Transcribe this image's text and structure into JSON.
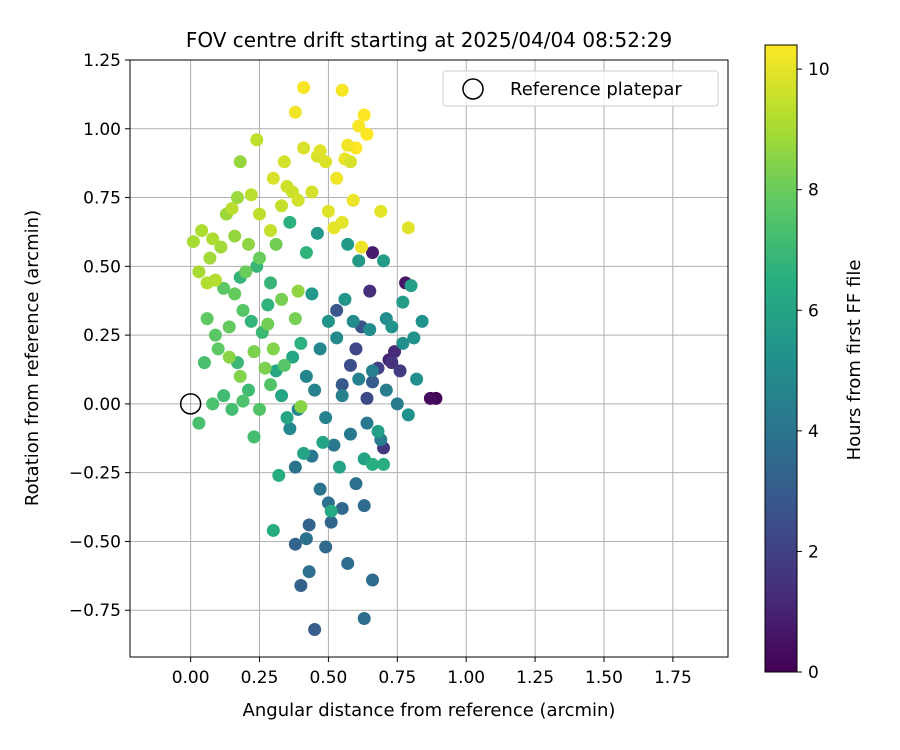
{
  "chart_data": {
    "type": "scatter",
    "title": "FOV centre drift starting at 2025/04/04 08:52:29",
    "xlabel": "Angular distance from reference (arcmin)",
    "ylabel": "Rotation from reference (arcmin)",
    "xlim": [
      -0.22,
      1.95
    ],
    "ylim": [
      -0.92,
      1.25
    ],
    "xticks": [
      0.0,
      0.25,
      0.5,
      0.75,
      1.0,
      1.25,
      1.5,
      1.75
    ],
    "yticks": [
      -0.75,
      -0.5,
      -0.25,
      0.0,
      0.25,
      0.5,
      0.75,
      1.0,
      1.25
    ],
    "xtick_labels": [
      "0.00",
      "0.25",
      "0.50",
      "0.75",
      "1.00",
      "1.25",
      "1.50",
      "1.75"
    ],
    "ytick_labels": [
      "−0.75",
      "−0.50",
      "−0.25",
      "0.00",
      "0.25",
      "0.50",
      "0.75",
      "1.00",
      "1.25"
    ],
    "grid": true,
    "legend": {
      "position": "top-right",
      "entries": [
        {
          "label": "Reference platepar",
          "marker": "open-circle"
        }
      ]
    },
    "reference_point": {
      "x": 0.0,
      "y": 0.0
    },
    "colorbar": {
      "label": "Hours from first FF file",
      "colormap": "viridis",
      "range": [
        0,
        10.4
      ],
      "ticks": [
        0,
        2,
        4,
        6,
        8,
        10
      ],
      "tick_labels": [
        "0",
        "2",
        "4",
        "6",
        "8",
        "10"
      ]
    },
    "series": [
      {
        "value_name": "hours",
        "points": [
          [
            0.89,
            0.02,
            0.1
          ],
          [
            0.87,
            0.02,
            0.3
          ],
          [
            0.78,
            0.44,
            0.6
          ],
          [
            0.66,
            0.55,
            0.8
          ],
          [
            0.72,
            0.16,
            1.0
          ],
          [
            0.74,
            0.19,
            1.2
          ],
          [
            0.65,
            0.41,
            1.4
          ],
          [
            0.73,
            0.15,
            1.5
          ],
          [
            0.7,
            -0.16,
            1.7
          ],
          [
            0.76,
            0.12,
            1.8
          ],
          [
            0.68,
            0.13,
            2.0
          ],
          [
            0.6,
            0.2,
            2.2
          ],
          [
            0.64,
            0.02,
            2.3
          ],
          [
            0.58,
            0.14,
            2.5
          ],
          [
            0.62,
            0.28,
            2.6
          ],
          [
            0.53,
            0.34,
            2.8
          ],
          [
            0.55,
            0.07,
            2.9
          ],
          [
            0.66,
            0.08,
            3.0
          ],
          [
            0.45,
            -0.82,
            3.1
          ],
          [
            0.4,
            -0.66,
            3.2
          ],
          [
            0.38,
            -0.51,
            3.3
          ],
          [
            0.43,
            -0.44,
            3.3
          ],
          [
            0.51,
            -0.43,
            3.4
          ],
          [
            0.55,
            -0.38,
            3.5
          ],
          [
            0.49,
            -0.52,
            3.5
          ],
          [
            0.63,
            -0.37,
            3.6
          ],
          [
            0.57,
            -0.58,
            3.6
          ],
          [
            0.66,
            -0.64,
            3.7
          ],
          [
            0.63,
            -0.78,
            3.7
          ],
          [
            0.43,
            -0.61,
            3.8
          ],
          [
            0.42,
            -0.49,
            3.8
          ],
          [
            0.5,
            -0.36,
            3.9
          ],
          [
            0.6,
            -0.29,
            3.9
          ],
          [
            0.47,
            -0.31,
            4.0
          ],
          [
            0.38,
            -0.23,
            4.0
          ],
          [
            0.44,
            -0.19,
            4.1
          ],
          [
            0.52,
            -0.15,
            4.1
          ],
          [
            0.58,
            -0.11,
            4.2
          ],
          [
            0.64,
            -0.07,
            4.2
          ],
          [
            0.69,
            -0.13,
            4.3
          ],
          [
            0.75,
            0.0,
            4.3
          ],
          [
            0.71,
            0.05,
            4.4
          ],
          [
            0.66,
            0.12,
            4.4
          ],
          [
            0.61,
            0.09,
            4.5
          ],
          [
            0.55,
            0.03,
            4.5
          ],
          [
            0.49,
            -0.05,
            4.6
          ],
          [
            0.45,
            0.05,
            4.6
          ],
          [
            0.42,
            0.1,
            4.7
          ],
          [
            0.39,
            -0.02,
            4.7
          ],
          [
            0.36,
            -0.09,
            4.8
          ],
          [
            0.47,
            0.2,
            4.8
          ],
          [
            0.53,
            0.24,
            4.9
          ],
          [
            0.59,
            0.3,
            4.9
          ],
          [
            0.65,
            0.27,
            5.0
          ],
          [
            0.71,
            0.31,
            5.0
          ],
          [
            0.77,
            0.22,
            5.1
          ],
          [
            0.82,
            0.09,
            5.1
          ],
          [
            0.79,
            -0.04,
            5.2
          ],
          [
            0.84,
            0.3,
            5.2
          ],
          [
            0.81,
            0.24,
            5.3
          ],
          [
            0.73,
            0.28,
            5.3
          ],
          [
            0.56,
            0.38,
            5.4
          ],
          [
            0.5,
            0.3,
            5.4
          ],
          [
            0.44,
            0.4,
            5.5
          ],
          [
            0.46,
            0.62,
            5.5
          ],
          [
            0.57,
            0.58,
            5.6
          ],
          [
            0.61,
            0.52,
            5.6
          ],
          [
            0.7,
            0.52,
            5.7
          ],
          [
            0.77,
            0.37,
            5.7
          ],
          [
            0.8,
            0.43,
            5.8
          ],
          [
            0.68,
            -0.1,
            5.8
          ],
          [
            0.63,
            -0.2,
            5.9
          ],
          [
            0.54,
            -0.23,
            5.9
          ],
          [
            0.48,
            -0.14,
            6.0
          ],
          [
            0.41,
            -0.18,
            6.0
          ],
          [
            0.35,
            -0.05,
            6.1
          ],
          [
            0.33,
            0.03,
            6.1
          ],
          [
            0.31,
            0.12,
            6.2
          ],
          [
            0.37,
            0.17,
            6.2
          ],
          [
            0.51,
            -0.39,
            6.3
          ],
          [
            0.32,
            -0.26,
            6.4
          ],
          [
            0.3,
            -0.46,
            6.4
          ],
          [
            0.66,
            -0.22,
            6.5
          ],
          [
            0.7,
            -0.22,
            6.5
          ],
          [
            0.4,
            0.22,
            6.6
          ],
          [
            0.36,
            0.66,
            6.6
          ],
          [
            0.42,
            0.55,
            6.7
          ],
          [
            0.28,
            0.36,
            6.7
          ],
          [
            0.22,
            0.3,
            6.8
          ],
          [
            0.18,
            0.46,
            6.8
          ],
          [
            0.24,
            0.5,
            6.9
          ],
          [
            0.29,
            0.44,
            6.9
          ],
          [
            0.26,
            0.26,
            7.0
          ],
          [
            0.17,
            0.15,
            7.0
          ],
          [
            0.21,
            0.05,
            7.1
          ],
          [
            0.12,
            0.03,
            7.1
          ],
          [
            0.15,
            -0.02,
            7.2
          ],
          [
            0.23,
            -0.12,
            7.2
          ],
          [
            0.05,
            0.15,
            7.3
          ],
          [
            0.03,
            -0.07,
            7.3
          ],
          [
            0.08,
            0.0,
            7.4
          ],
          [
            0.19,
            0.01,
            7.4
          ],
          [
            0.25,
            -0.02,
            7.5
          ],
          [
            0.29,
            0.07,
            7.5
          ],
          [
            0.34,
            0.14,
            7.6
          ],
          [
            0.19,
            0.34,
            7.6
          ],
          [
            0.12,
            0.42,
            7.7
          ],
          [
            0.09,
            0.25,
            7.7
          ],
          [
            0.06,
            0.31,
            7.8
          ],
          [
            0.1,
            0.2,
            7.8
          ],
          [
            0.14,
            0.28,
            7.9
          ],
          [
            0.16,
            0.4,
            7.9
          ],
          [
            0.2,
            0.48,
            8.0
          ],
          [
            0.25,
            0.53,
            8.0
          ],
          [
            0.31,
            0.58,
            8.1
          ],
          [
            0.28,
            0.29,
            8.1
          ],
          [
            0.33,
            0.38,
            8.2
          ],
          [
            0.38,
            0.31,
            8.2
          ],
          [
            0.23,
            0.19,
            8.3
          ],
          [
            0.27,
            0.13,
            8.3
          ],
          [
            0.3,
            0.2,
            8.4
          ],
          [
            0.18,
            0.1,
            8.4
          ],
          [
            0.14,
            0.17,
            8.5
          ],
          [
            0.4,
            -0.01,
            8.5
          ],
          [
            0.39,
            0.41,
            8.6
          ],
          [
            0.21,
            0.58,
            8.6
          ],
          [
            0.16,
            0.61,
            8.7
          ],
          [
            0.18,
            0.88,
            8.7
          ],
          [
            0.17,
            0.75,
            8.8
          ],
          [
            0.13,
            0.69,
            8.8
          ],
          [
            0.11,
            0.57,
            8.9
          ],
          [
            0.07,
            0.53,
            8.9
          ],
          [
            0.03,
            0.48,
            9.0
          ],
          [
            0.01,
            0.59,
            9.0
          ],
          [
            0.04,
            0.63,
            9.1
          ],
          [
            0.08,
            0.6,
            9.1
          ],
          [
            0.06,
            0.44,
            9.2
          ],
          [
            0.09,
            0.45,
            9.2
          ],
          [
            0.15,
            0.71,
            9.3
          ],
          [
            0.22,
            0.76,
            9.3
          ],
          [
            0.24,
            0.96,
            9.4
          ],
          [
            0.25,
            0.69,
            9.4
          ],
          [
            0.29,
            0.63,
            9.5
          ],
          [
            0.33,
            0.72,
            9.5
          ],
          [
            0.35,
            0.79,
            9.6
          ],
          [
            0.37,
            0.77,
            9.6
          ],
          [
            0.39,
            0.74,
            9.7
          ],
          [
            0.44,
            0.77,
            9.7
          ],
          [
            0.46,
            0.9,
            9.8
          ],
          [
            0.41,
            0.93,
            9.8
          ],
          [
            0.47,
            0.92,
            9.9
          ],
          [
            0.5,
            0.7,
            9.9
          ],
          [
            0.52,
            0.64,
            10.0
          ],
          [
            0.55,
            0.66,
            10.0
          ],
          [
            0.56,
            0.89,
            10.1
          ],
          [
            0.59,
            0.74,
            10.1
          ],
          [
            0.53,
            0.82,
            10.2
          ],
          [
            0.38,
            1.06,
            10.2
          ],
          [
            0.41,
            1.15,
            10.3
          ],
          [
            0.55,
            1.14,
            10.3
          ],
          [
            0.61,
            1.01,
            10.3
          ],
          [
            0.63,
            1.05,
            10.4
          ],
          [
            0.64,
            0.98,
            10.4
          ],
          [
            0.6,
            0.93,
            10.4
          ],
          [
            0.57,
            0.94,
            10.2
          ],
          [
            0.62,
            0.57,
            10.1
          ],
          [
            0.69,
            0.7,
            10.0
          ],
          [
            0.79,
            0.64,
            9.9
          ],
          [
            0.49,
            0.88,
            9.9
          ],
          [
            0.58,
            0.88,
            9.8
          ],
          [
            0.3,
            0.82,
            9.8
          ],
          [
            0.34,
            0.88,
            9.7
          ]
        ]
      }
    ]
  }
}
